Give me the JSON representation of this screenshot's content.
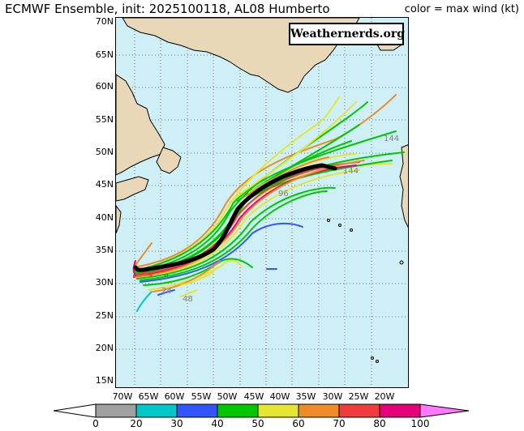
{
  "header": {
    "title": "ECMWF Ensemble, init: 2025100118, AL08 Humberto",
    "subtitle": "color = max wind (kt)",
    "brand": "Weathernerds.org"
  },
  "axes": {
    "lat_labels": [
      "70N",
      "65N",
      "60N",
      "55N",
      "50N",
      "45N",
      "40N",
      "35N",
      "30N",
      "25N",
      "20N",
      "15N"
    ],
    "lon_labels": [
      "70W",
      "65W",
      "60W",
      "55W",
      "50W",
      "45W",
      "40W",
      "35W",
      "30W",
      "25W",
      "20W"
    ]
  },
  "track_hour_labels": [
    "24",
    "48",
    "96",
    "144",
    "144"
  ],
  "colorbar": {
    "labels": [
      "0",
      "20",
      "30",
      "40",
      "50",
      "60",
      "70",
      "80",
      "100"
    ],
    "colors": [
      "#ffffff",
      "#a0a0a0",
      "#00c8c8",
      "#3355ff",
      "#00c800",
      "#e6e632",
      "#f08c28",
      "#f03c3c",
      "#e6007a",
      "#ff78ff"
    ]
  }
}
